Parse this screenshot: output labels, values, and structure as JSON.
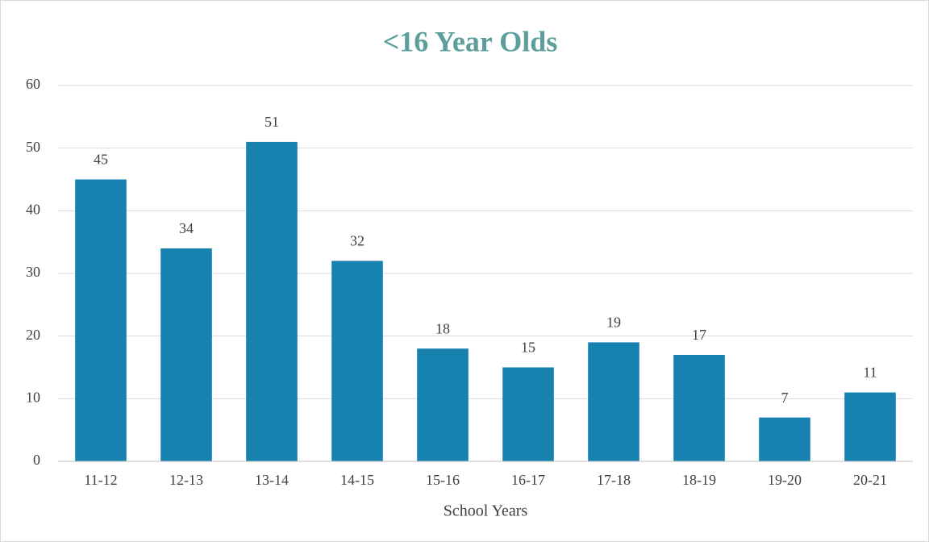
{
  "chart_data": {
    "type": "bar",
    "title": "<16 Year Olds",
    "x_label": "School Years",
    "categories": [
      "11-12",
      "12-13",
      "13-14",
      "14-15",
      "15-16",
      "16-17",
      "17-18",
      "18-19",
      "19-20",
      "20-21"
    ],
    "values": [
      45,
      34,
      51,
      32,
      18,
      15,
      19,
      17,
      7,
      11
    ],
    "color": "#1782b0",
    "ylim": [
      0,
      60
    ],
    "yticks": [
      0,
      10,
      20,
      30,
      40,
      50,
      60
    ],
    "grid": true
  }
}
